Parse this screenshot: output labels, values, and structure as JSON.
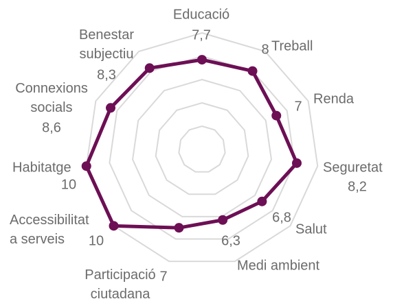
{
  "chart_data": {
    "type": "radar",
    "categories": [
      "Educació",
      "Treball",
      "Renda",
      "Seguretat",
      "Salut",
      "Medi ambient",
      "Participació\nciutadana",
      "Accessibilitat\na serveis",
      "Habitatge",
      "Connexions\nsocials",
      "Benestar\nsubjectiu"
    ],
    "values": [
      7.7,
      8,
      7,
      8.2,
      6.8,
      6.3,
      7,
      10,
      10,
      8.6,
      8.3
    ],
    "value_labels": [
      "7,7",
      "8",
      "7",
      "8,2",
      "6,8",
      "6,3",
      "7",
      "10",
      "10",
      "8,6",
      "8,3"
    ],
    "color": "#6d0f55",
    "ylim": [
      0,
      10
    ],
    "yticks": [
      0,
      2,
      4,
      6,
      8,
      10
    ],
    "grid": true
  }
}
